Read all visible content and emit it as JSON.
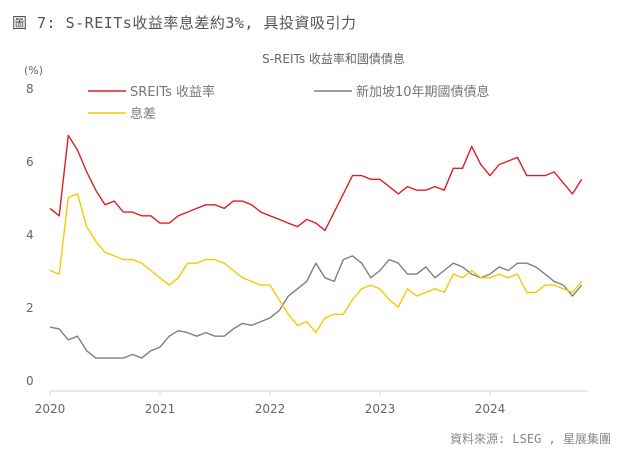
{
  "figure_title": "圖 7: S-REITs收益率息差約3%, 具投資吸引力",
  "source": "資料來源: LSEG , 星展集團",
  "colors": {
    "sreits": "#e01e26",
    "govt": "#7f7f7f",
    "spread": "#f7c900",
    "axis": "#d9d9d9"
  },
  "chart_data": {
    "type": "line",
    "title": "S-REITs 收益率和國債債息",
    "ylabel": "(%)",
    "xlabel": "",
    "ylim": [
      0,
      8
    ],
    "yticks": [
      0,
      2,
      4,
      6,
      8
    ],
    "ytick_labels": [
      "0",
      "2",
      "4",
      "6",
      "8"
    ],
    "xlim": [
      "2020-01",
      "2024-11"
    ],
    "xticks": [
      "2020",
      "2021",
      "2022",
      "2023",
      "2024"
    ],
    "grid": false,
    "legend": "top",
    "frequency": "monthly",
    "x": [
      "2020-01",
      "2020-02",
      "2020-03",
      "2020-04",
      "2020-05",
      "2020-06",
      "2020-07",
      "2020-08",
      "2020-09",
      "2020-10",
      "2020-11",
      "2020-12",
      "2021-01",
      "2021-02",
      "2021-03",
      "2021-04",
      "2021-05",
      "2021-06",
      "2021-07",
      "2021-08",
      "2021-09",
      "2021-10",
      "2021-11",
      "2021-12",
      "2022-01",
      "2022-02",
      "2022-03",
      "2022-04",
      "2022-05",
      "2022-06",
      "2022-07",
      "2022-08",
      "2022-09",
      "2022-10",
      "2022-11",
      "2022-12",
      "2023-01",
      "2023-02",
      "2023-03",
      "2023-04",
      "2023-05",
      "2023-06",
      "2023-07",
      "2023-08",
      "2023-09",
      "2023-10",
      "2023-11",
      "2023-12",
      "2024-01",
      "2024-02",
      "2024-03",
      "2024-04",
      "2024-05",
      "2024-06",
      "2024-07",
      "2024-08",
      "2024-09",
      "2024-10",
      "2024-11"
    ],
    "series": [
      {
        "name": "SREITs 收益率",
        "key": "sreits",
        "values": [
          4.7,
          4.5,
          6.7,
          6.3,
          5.7,
          5.2,
          4.8,
          4.9,
          4.6,
          4.6,
          4.5,
          4.5,
          4.3,
          4.3,
          4.5,
          4.6,
          4.7,
          4.8,
          4.8,
          4.7,
          4.9,
          4.9,
          4.8,
          4.6,
          4.5,
          4.4,
          4.3,
          4.2,
          4.4,
          4.3,
          4.1,
          4.6,
          5.1,
          5.6,
          5.6,
          5.5,
          5.5,
          5.3,
          5.1,
          5.3,
          5.2,
          5.2,
          5.3,
          5.2,
          5.8,
          5.8,
          6.4,
          5.9,
          5.6,
          5.9,
          6.0,
          6.1,
          5.6,
          5.6,
          5.6,
          5.7,
          5.4,
          5.1,
          5.5
        ]
      },
      {
        "name": "新加坡10年期國債債息",
        "key": "govt",
        "values": [
          1.45,
          1.4,
          1.1,
          1.2,
          0.8,
          0.6,
          0.6,
          0.6,
          0.6,
          0.7,
          0.6,
          0.8,
          0.9,
          1.2,
          1.35,
          1.3,
          1.2,
          1.3,
          1.2,
          1.2,
          1.4,
          1.55,
          1.5,
          1.6,
          1.7,
          1.9,
          2.3,
          2.5,
          2.7,
          3.2,
          2.8,
          2.7,
          3.3,
          3.4,
          3.2,
          2.8,
          3.0,
          3.3,
          3.2,
          2.9,
          2.9,
          3.1,
          2.8,
          3.0,
          3.2,
          3.1,
          2.9,
          2.8,
          2.9,
          3.1,
          3.0,
          3.2,
          3.2,
          3.1,
          2.9,
          2.7,
          2.6,
          2.3,
          2.6
        ]
      },
      {
        "name": "息差",
        "key": "spread",
        "values": [
          3.0,
          2.9,
          5.0,
          5.1,
          4.2,
          3.8,
          3.5,
          3.4,
          3.3,
          3.3,
          3.2,
          3.0,
          2.8,
          2.6,
          2.8,
          3.2,
          3.2,
          3.3,
          3.3,
          3.2,
          3.0,
          2.8,
          2.7,
          2.6,
          2.6,
          2.2,
          1.8,
          1.5,
          1.6,
          1.3,
          1.7,
          1.8,
          1.8,
          2.2,
          2.5,
          2.6,
          2.5,
          2.2,
          2.0,
          2.5,
          2.3,
          2.4,
          2.5,
          2.4,
          2.9,
          2.8,
          3.0,
          2.8,
          2.8,
          2.9,
          2.8,
          2.9,
          2.4,
          2.4,
          2.6,
          2.6,
          2.5,
          2.4,
          2.7
        ]
      }
    ]
  }
}
